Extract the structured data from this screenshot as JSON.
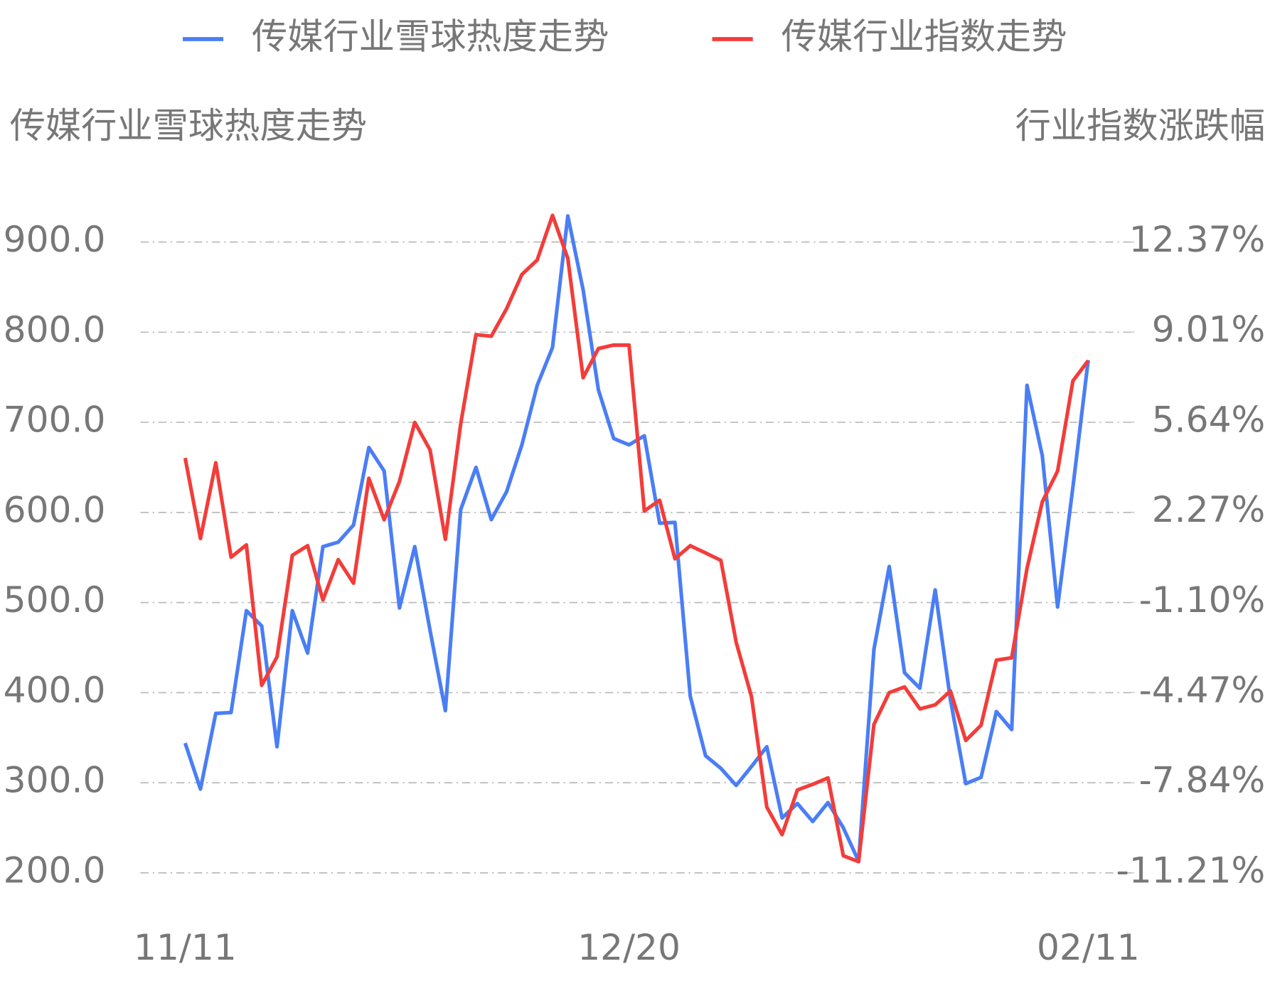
{
  "chart_data": {
    "type": "line",
    "y_title": "传媒行业雪球热度走势",
    "y2_title": "行业指数涨跌幅",
    "categories": [
      "11/11",
      null,
      null,
      null,
      null,
      null,
      null,
      null,
      null,
      null,
      null,
      null,
      null,
      null,
      null,
      null,
      null,
      null,
      null,
      null,
      null,
      null,
      null,
      null,
      null,
      null,
      null,
      null,
      null,
      "12/20",
      null,
      null,
      null,
      null,
      null,
      null,
      null,
      null,
      null,
      null,
      null,
      null,
      null,
      null,
      null,
      null,
      null,
      null,
      null,
      null,
      null,
      null,
      null,
      null,
      null,
      null,
      null,
      null,
      null,
      "02/11"
    ],
    "ylim": [
      200,
      900
    ],
    "yticks": [
      {
        "value": 200,
        "label": "200.0"
      },
      {
        "value": 300,
        "label": "300.0"
      },
      {
        "value": 400,
        "label": "400.0"
      },
      {
        "value": 500,
        "label": "500.0"
      },
      {
        "value": 600,
        "label": "600.0"
      },
      {
        "value": 700,
        "label": "700.0"
      },
      {
        "value": 800,
        "label": "800.0"
      },
      {
        "value": 900,
        "label": "900.0"
      }
    ],
    "y2lim": [
      -11.21,
      12.37
    ],
    "y2ticks": [
      {
        "value": -11.21,
        "label": "-11.21%"
      },
      {
        "value": -7.84,
        "label": "-7.84%"
      },
      {
        "value": -4.47,
        "label": "-4.47%"
      },
      {
        "value": -1.1,
        "label": "-1.10%"
      },
      {
        "value": 2.27,
        "label": "2.27%"
      },
      {
        "value": 5.64,
        "label": "5.64%"
      },
      {
        "value": 9.01,
        "label": "9.01%"
      },
      {
        "value": 12.37,
        "label": "12.37%"
      }
    ],
    "grid": true,
    "series": [
      {
        "name": "传媒行业雪球热度走势",
        "color": "#4a7ef5",
        "values": [
          344,
          293,
          377,
          378,
          491,
          474,
          340,
          491,
          444,
          562,
          567,
          586,
          672,
          646,
          494,
          562,
          469,
          380,
          603,
          650,
          592,
          623,
          675,
          741,
          783,
          929,
          847,
          736,
          682,
          675,
          685,
          588,
          589,
          396,
          330,
          316,
          297,
          318,
          340,
          261,
          277,
          257,
          278,
          250,
          213,
          448,
          540,
          422,
          405,
          514,
          392,
          299,
          306,
          379,
          359,
          741,
          663,
          495,
          628,
          769
        ]
      },
      {
        "name": "传媒行业指数走势",
        "color": "#f23d3a",
        "axis": "y2",
        "values": [
          4.3,
          1.29,
          4.12,
          0.59,
          1.05,
          -4.2,
          -3.14,
          0.66,
          1.02,
          -1.01,
          0.5,
          -0.38,
          3.54,
          1.99,
          3.42,
          5.63,
          4.6,
          1.26,
          5.57,
          8.91,
          8.85,
          9.88,
          11.16,
          11.7,
          13.37,
          11.76,
          7.3,
          8.39,
          8.52,
          8.52,
          2.32,
          2.72,
          0.53,
          1.02,
          0.75,
          0.47,
          -2.59,
          -4.62,
          -8.75,
          -9.78,
          -8.11,
          -7.9,
          -7.66,
          -10.57,
          -10.79,
          -5.66,
          -4.47,
          -4.26,
          -5.08,
          -4.93,
          -4.41,
          -6.26,
          -5.69,
          -3.26,
          -3.17,
          0.17,
          2.66,
          3.81,
          7.18,
          7.94
        ]
      }
    ]
  }
}
